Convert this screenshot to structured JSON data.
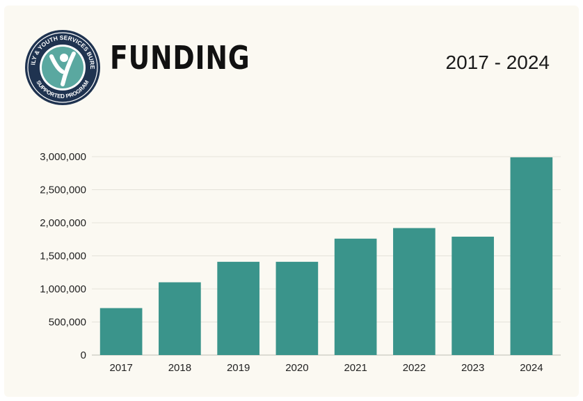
{
  "header": {
    "title": "FUNDING",
    "date_range": "2017 - 2024"
  },
  "logo": {
    "ring_text_top": "FAMILY & YOUTH SERVICES BUREAU",
    "ring_text_bottom": "SUPPORTED PROGRAM"
  },
  "colors": {
    "bar": "#3a948b",
    "logo_teal": "#5aa8a0",
    "logo_navy": "#1f3350",
    "background": "#fbf9f2"
  },
  "chart_data": {
    "type": "bar",
    "categories": [
      "2017",
      "2018",
      "2019",
      "2020",
      "2021",
      "2022",
      "2023",
      "2024"
    ],
    "values": [
      710000,
      1100000,
      1410000,
      1410000,
      1760000,
      1920000,
      1790000,
      2990000
    ],
    "ylim": [
      0,
      3000000
    ],
    "yticks": [
      0,
      500000,
      1000000,
      1500000,
      2000000,
      2500000,
      3000000
    ],
    "ytick_labels": [
      "0",
      "500,000",
      "1,000,000",
      "1,500,000",
      "2,000,000",
      "2,500,000",
      "3,000,000"
    ],
    "grid": true
  }
}
